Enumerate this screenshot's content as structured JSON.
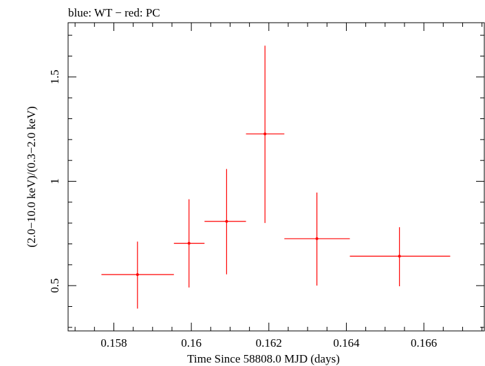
{
  "chart_data": {
    "type": "scatter",
    "title": "blue: WT − red: PC",
    "xlabel": "Time Since 58808.0 MJD (days)",
    "ylabel": "(2.0−10.0 keV)/(0.3−2.0 keV)",
    "xlim": [
      0.15682,
      0.16756
    ],
    "ylim": [
      0.283,
      1.76
    ],
    "x_ticks": [
      {
        "value": 0.158,
        "label": "0.158"
      },
      {
        "value": 0.16,
        "label": "0.16"
      },
      {
        "value": 0.162,
        "label": "0.162"
      },
      {
        "value": 0.164,
        "label": "0.164"
      },
      {
        "value": 0.166,
        "label": "0.166"
      }
    ],
    "y_ticks": [
      {
        "value": 0.5,
        "label": "0.5"
      },
      {
        "value": 1.0,
        "label": "1"
      },
      {
        "value": 1.5,
        "label": "1.5"
      }
    ],
    "series": [
      {
        "color": "#ff0000",
        "points": [
          {
            "x": 0.15861,
            "xlo": 0.15768,
            "xhi": 0.15955,
            "y": 0.553,
            "ylo": 0.39,
            "yhi": 0.711
          },
          {
            "x": 0.15994,
            "xlo": 0.15955,
            "xhi": 0.16034,
            "y": 0.703,
            "ylo": 0.491,
            "yhi": 0.914
          },
          {
            "x": 0.16091,
            "xlo": 0.16034,
            "xhi": 0.16141,
            "y": 0.808,
            "ylo": 0.554,
            "yhi": 1.059
          },
          {
            "x": 0.1619,
            "xlo": 0.16141,
            "xhi": 0.1624,
            "y": 1.227,
            "ylo": 0.8,
            "yhi": 1.65
          },
          {
            "x": 0.16324,
            "xlo": 0.1624,
            "xhi": 0.16409,
            "y": 0.725,
            "ylo": 0.5,
            "yhi": 0.946
          },
          {
            "x": 0.16537,
            "xlo": 0.16409,
            "xhi": 0.16668,
            "y": 0.641,
            "ylo": 0.497,
            "yhi": 0.78
          }
        ]
      }
    ],
    "grid": false
  }
}
